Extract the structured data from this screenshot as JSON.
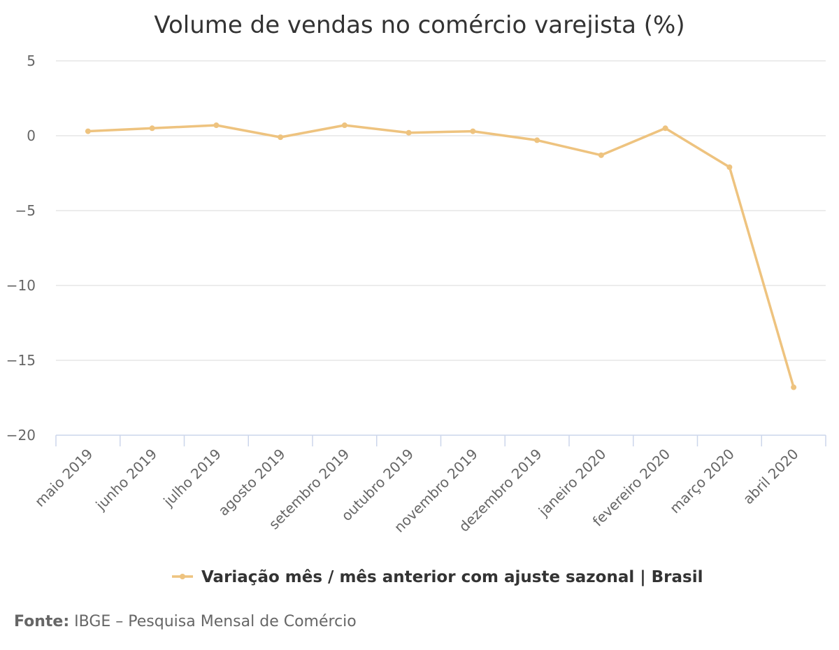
{
  "source": {
    "label": "Fonte:",
    "text": "IBGE – Pesquisa Mensal de Comércio"
  },
  "colors": {
    "series": "#EEC37F",
    "grid": "#E6E6E6",
    "axis": "#CCD6EB",
    "text": "#333333",
    "muted": "#666666"
  },
  "chart_data": {
    "type": "line",
    "title": "Volume de vendas no comércio varejista (%)",
    "xlabel": "",
    "ylabel": "",
    "categories": [
      "maio 2019",
      "junho 2019",
      "julho 2019",
      "agosto 2019",
      "setembro 2019",
      "outubro 2019",
      "novembro 2019",
      "dezembro 2019",
      "janeiro 2020",
      "fevereiro 2020",
      "março 2020",
      "abril 2020"
    ],
    "series": [
      {
        "name": "Variação mês / mês anterior com ajuste sazonal | Brasil",
        "values": [
          0.3,
          0.5,
          0.7,
          -0.1,
          0.7,
          0.2,
          0.3,
          -0.3,
          -1.3,
          0.5,
          -2.1,
          -16.8
        ]
      }
    ],
    "ylim": [
      -20,
      5
    ],
    "yticks": [
      5,
      0,
      -5,
      -10,
      -15,
      -20
    ],
    "ytick_labels": [
      "5",
      "0",
      "−5",
      "−10",
      "−15",
      "−20"
    ],
    "grid": true,
    "legend_position": "bottom"
  }
}
